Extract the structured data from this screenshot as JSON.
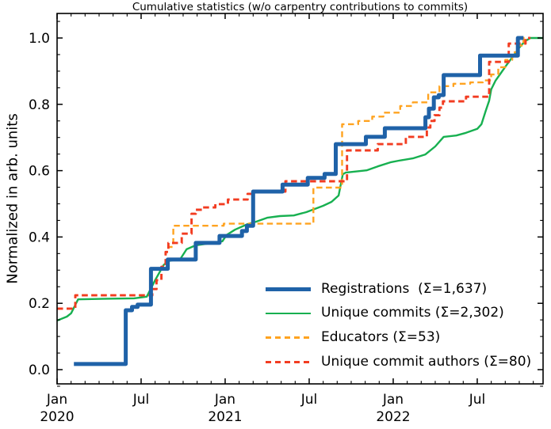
{
  "chart_data": {
    "type": "line",
    "subtype": "cumulative-step",
    "title": "Cumulative statistics (w/o carpentry contributions to commits)",
    "xlabel": "",
    "ylabel": "Normalized in arb. units",
    "grid": false,
    "legend_position": "lower right",
    "legend_frame": false,
    "x_axis": {
      "unit": "months since 2020-01",
      "range_months": [
        0,
        34.7
      ],
      "major_ticks": [
        {
          "m": 0,
          "label": "Jan",
          "year": "2020"
        },
        {
          "m": 6,
          "label": "Jul",
          "year": ""
        },
        {
          "m": 12,
          "label": "Jan",
          "year": "2021"
        },
        {
          "m": 18,
          "label": "Jul",
          "year": ""
        },
        {
          "m": 24,
          "label": "Jan",
          "year": "2022"
        },
        {
          "m": 30,
          "label": "Jul",
          "year": ""
        }
      ],
      "minor_tick_every_month": true,
      "tick_direction": "in",
      "ticks_on_top": true
    },
    "y_axis": {
      "ylim": [
        -0.043,
        1.074
      ],
      "major_ticks": [
        {
          "v": 0.0,
          "label": "0.0"
        },
        {
          "v": 0.2,
          "label": "0.2"
        },
        {
          "v": 0.4,
          "label": "0.4"
        },
        {
          "v": 0.6,
          "label": "0.6"
        },
        {
          "v": 0.8,
          "label": "0.8"
        },
        {
          "v": 1.0,
          "label": "1.0"
        }
      ],
      "minor_tick_step": 0.05,
      "tick_direction": "in",
      "ticks_on_right": true
    },
    "series": [
      {
        "name": "registrations",
        "legend_label": "Registrations  (Σ=1,637)",
        "sum": 1637,
        "color": "#1f62a8",
        "dashed": false,
        "line_width": 5,
        "draw": "step",
        "z": 5,
        "points": [
          [
            1.2,
            0.017
          ],
          [
            4.9,
            0.179
          ],
          [
            5.35,
            0.189
          ],
          [
            5.75,
            0.196
          ],
          [
            6.7,
            0.304
          ],
          [
            7.9,
            0.332
          ],
          [
            9.9,
            0.382
          ],
          [
            11.6,
            0.403
          ],
          [
            13.2,
            0.418
          ],
          [
            13.55,
            0.434
          ],
          [
            14.0,
            0.537
          ],
          [
            16.1,
            0.558
          ],
          [
            17.9,
            0.578
          ],
          [
            19.1,
            0.59
          ],
          [
            19.9,
            0.68
          ],
          [
            22.05,
            0.702
          ],
          [
            23.4,
            0.728
          ],
          [
            26.3,
            0.761
          ],
          [
            26.55,
            0.787
          ],
          [
            26.9,
            0.821
          ],
          [
            27.25,
            0.828
          ],
          [
            27.6,
            0.888
          ],
          [
            30.2,
            0.947
          ],
          [
            32.9,
            1.0
          ],
          [
            33.3,
            1.0
          ]
        ]
      },
      {
        "name": "unique-commits",
        "legend_label": "Unique commits (Σ=2,302)",
        "sum": 2302,
        "color": "#17b050",
        "dashed": false,
        "line_width": 2.4,
        "draw": "line",
        "z": 2,
        "points": [
          [
            0,
            0.148
          ],
          [
            0.7,
            0.16
          ],
          [
            1.0,
            0.17
          ],
          [
            1.5,
            0.212
          ],
          [
            2.5,
            0.213
          ],
          [
            4.0,
            0.214
          ],
          [
            5.5,
            0.215
          ],
          [
            6.4,
            0.22
          ],
          [
            7.0,
            0.27
          ],
          [
            7.6,
            0.315
          ],
          [
            7.9,
            0.327
          ],
          [
            8.8,
            0.334
          ],
          [
            9.25,
            0.363
          ],
          [
            9.9,
            0.375
          ],
          [
            10.6,
            0.379
          ],
          [
            11.8,
            0.387
          ],
          [
            12.1,
            0.406
          ],
          [
            12.7,
            0.422
          ],
          [
            13.6,
            0.439
          ],
          [
            14.2,
            0.446
          ],
          [
            15.0,
            0.458
          ],
          [
            15.9,
            0.463
          ],
          [
            16.9,
            0.465
          ],
          [
            17.8,
            0.475
          ],
          [
            19.0,
            0.494
          ],
          [
            19.6,
            0.506
          ],
          [
            20.1,
            0.525
          ],
          [
            20.4,
            0.589
          ],
          [
            20.6,
            0.594
          ],
          [
            22.1,
            0.601
          ],
          [
            22.9,
            0.613
          ],
          [
            23.8,
            0.625
          ],
          [
            24.4,
            0.63
          ],
          [
            25.4,
            0.637
          ],
          [
            26.3,
            0.649
          ],
          [
            27.0,
            0.673
          ],
          [
            27.6,
            0.702
          ],
          [
            28.5,
            0.706
          ],
          [
            29.2,
            0.714
          ],
          [
            30.0,
            0.726
          ],
          [
            30.3,
            0.74
          ],
          [
            30.6,
            0.78
          ],
          [
            30.85,
            0.811
          ],
          [
            31.0,
            0.845
          ],
          [
            31.3,
            0.871
          ],
          [
            31.7,
            0.895
          ],
          [
            32.1,
            0.919
          ],
          [
            32.6,
            0.947
          ],
          [
            33.0,
            0.971
          ],
          [
            33.4,
            0.99
          ],
          [
            33.8,
            1.0
          ],
          [
            34.68,
            1.0
          ]
        ]
      },
      {
        "name": "educators",
        "legend_label": "Educators (Σ=53)",
        "sum": 53,
        "color": "#ffa320",
        "dashed": true,
        "line_width": 2.4,
        "draw": "step",
        "z": 3,
        "points": [
          [
            0,
            0.184
          ],
          [
            1.3,
            0.224
          ],
          [
            6.8,
            0.243
          ],
          [
            7.1,
            0.27
          ],
          [
            7.45,
            0.31
          ],
          [
            7.75,
            0.355
          ],
          [
            7.95,
            0.37
          ],
          [
            8.3,
            0.434
          ],
          [
            11.9,
            0.44
          ],
          [
            18.3,
            0.549
          ],
          [
            20.35,
            0.74
          ],
          [
            21.5,
            0.75
          ],
          [
            22.5,
            0.763
          ],
          [
            23.3,
            0.775
          ],
          [
            24.5,
            0.795
          ],
          [
            25.4,
            0.806
          ],
          [
            26.5,
            0.836
          ],
          [
            27.3,
            0.855
          ],
          [
            28.3,
            0.862
          ],
          [
            29.5,
            0.866
          ],
          [
            30.4,
            0.872
          ],
          [
            31.0,
            0.89
          ],
          [
            31.5,
            0.912
          ],
          [
            32.0,
            0.934
          ],
          [
            32.5,
            0.957
          ],
          [
            32.9,
            0.977
          ],
          [
            33.3,
            1.0
          ],
          [
            33.6,
            1.0
          ]
        ]
      },
      {
        "name": "unique-commit-authors",
        "legend_label": "Unique commit authors (Σ=80)",
        "sum": 80,
        "color": "#f23c21",
        "dashed": true,
        "line_width": 2.9,
        "draw": "step",
        "z": 4,
        "points": [
          [
            0,
            0.184
          ],
          [
            1.3,
            0.224
          ],
          [
            6.8,
            0.243
          ],
          [
            7.1,
            0.27
          ],
          [
            7.45,
            0.31
          ],
          [
            7.75,
            0.355
          ],
          [
            7.95,
            0.382
          ],
          [
            8.9,
            0.41
          ],
          [
            9.6,
            0.47
          ],
          [
            9.9,
            0.482
          ],
          [
            10.35,
            0.489
          ],
          [
            11.3,
            0.499
          ],
          [
            12.2,
            0.513
          ],
          [
            13.6,
            0.53
          ],
          [
            14.0,
            0.537
          ],
          [
            16.3,
            0.568
          ],
          [
            20.7,
            0.661
          ],
          [
            22.9,
            0.68
          ],
          [
            24.9,
            0.702
          ],
          [
            26.4,
            0.73
          ],
          [
            26.65,
            0.75
          ],
          [
            26.95,
            0.767
          ],
          [
            27.3,
            0.79
          ],
          [
            27.55,
            0.809
          ],
          [
            29.2,
            0.823
          ],
          [
            30.85,
            0.928
          ],
          [
            32.25,
            0.983
          ],
          [
            33.45,
            1.0
          ],
          [
            33.8,
            1.0
          ]
        ]
      }
    ]
  }
}
